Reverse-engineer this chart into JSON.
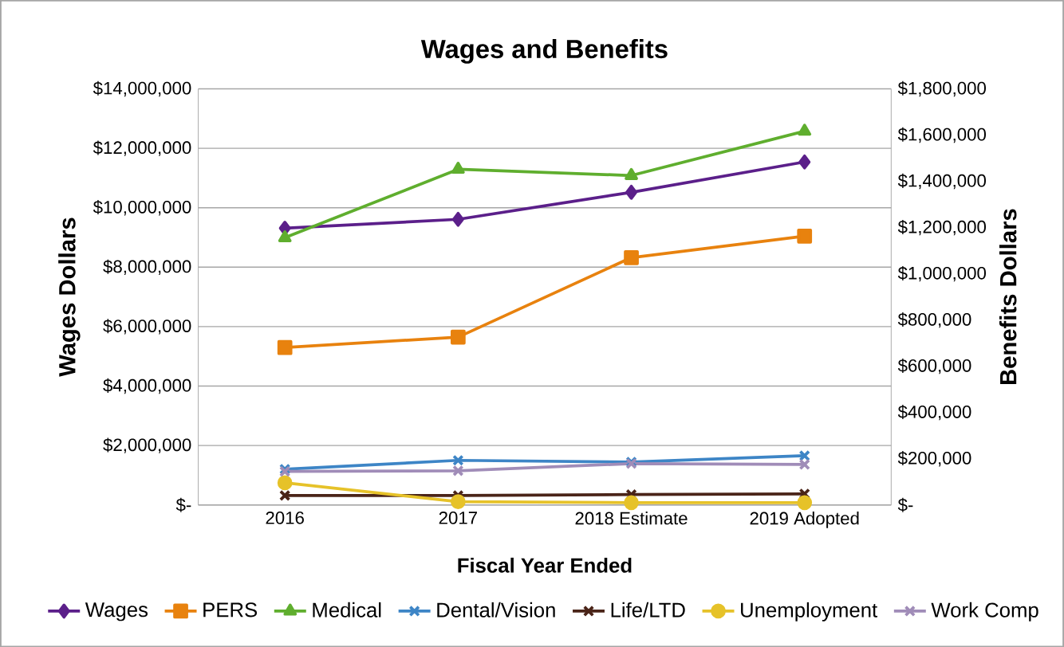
{
  "chart_data": {
    "type": "line",
    "title": "Wages and Benefits",
    "xlabel": "Fiscal Year Ended",
    "ylabel": "Wages  Dollars",
    "y2label": "Benefits  Dollars",
    "categories": [
      "2016",
      "2017",
      "2018 Estimate",
      "2019 Adopted"
    ],
    "ylim": [
      0,
      14000000
    ],
    "yticks": [
      {
        "value": 0,
        "label": "$-"
      },
      {
        "value": 2000000,
        "label": "$2,000,000"
      },
      {
        "value": 4000000,
        "label": "$4,000,000"
      },
      {
        "value": 6000000,
        "label": "$6,000,000"
      },
      {
        "value": 8000000,
        "label": "$8,000,000"
      },
      {
        "value": 10000000,
        "label": "$10,000,000"
      },
      {
        "value": 12000000,
        "label": "$12,000,000"
      },
      {
        "value": 14000000,
        "label": "$14,000,000"
      }
    ],
    "y2lim": [
      0,
      1800000
    ],
    "y2ticks": [
      {
        "value": 0,
        "label": "$-"
      },
      {
        "value": 200000,
        "label": "$200,000"
      },
      {
        "value": 400000,
        "label": "$400,000"
      },
      {
        "value": 600000,
        "label": "$600,000"
      },
      {
        "value": 800000,
        "label": "$800,000"
      },
      {
        "value": 1000000,
        "label": "$1,000,000"
      },
      {
        "value": 1200000,
        "label": "$1,200,000"
      },
      {
        "value": 1400000,
        "label": "$1,400,000"
      },
      {
        "value": 1600000,
        "label": "$1,600,000"
      },
      {
        "value": 1800000,
        "label": "$1,800,000"
      }
    ],
    "grid": "y",
    "legend": "bottom",
    "line_style": "solid",
    "series": [
      {
        "name": "Wages",
        "color": "#5b1f8a",
        "marker": "diamond",
        "values": [
          9310000,
          9610000,
          10520000,
          11540000
        ]
      },
      {
        "name": "PERS",
        "color": "#e8820e",
        "marker": "square",
        "axis": "y2",
        "values": [
          681000,
          726000,
          1070000,
          1163000
        ]
      },
      {
        "name": "Medical",
        "color": "#5fae2e",
        "marker": "triangle",
        "axis": "y2",
        "values": [
          1156000,
          1452000,
          1425000,
          1617000
        ]
      },
      {
        "name": "Dental/Vision",
        "color": "#3d85c6",
        "marker": "cross",
        "axis": "y2",
        "values": [
          155000,
          193000,
          186000,
          213000
        ]
      },
      {
        "name": "Life/LTD",
        "color": "#4a2418",
        "marker": "cross",
        "axis": "y2",
        "values": [
          41000,
          41000,
          45000,
          48000
        ]
      },
      {
        "name": "Unemployment",
        "color": "#e6c229",
        "marker": "circle",
        "axis": "y2",
        "values": [
          96000,
          14000,
          10000,
          10000
        ]
      },
      {
        "name": "Work Comp",
        "color": "#a08cb8",
        "marker": "cross",
        "axis": "y2",
        "values": [
          145000,
          148000,
          179000,
          175000
        ]
      }
    ]
  }
}
